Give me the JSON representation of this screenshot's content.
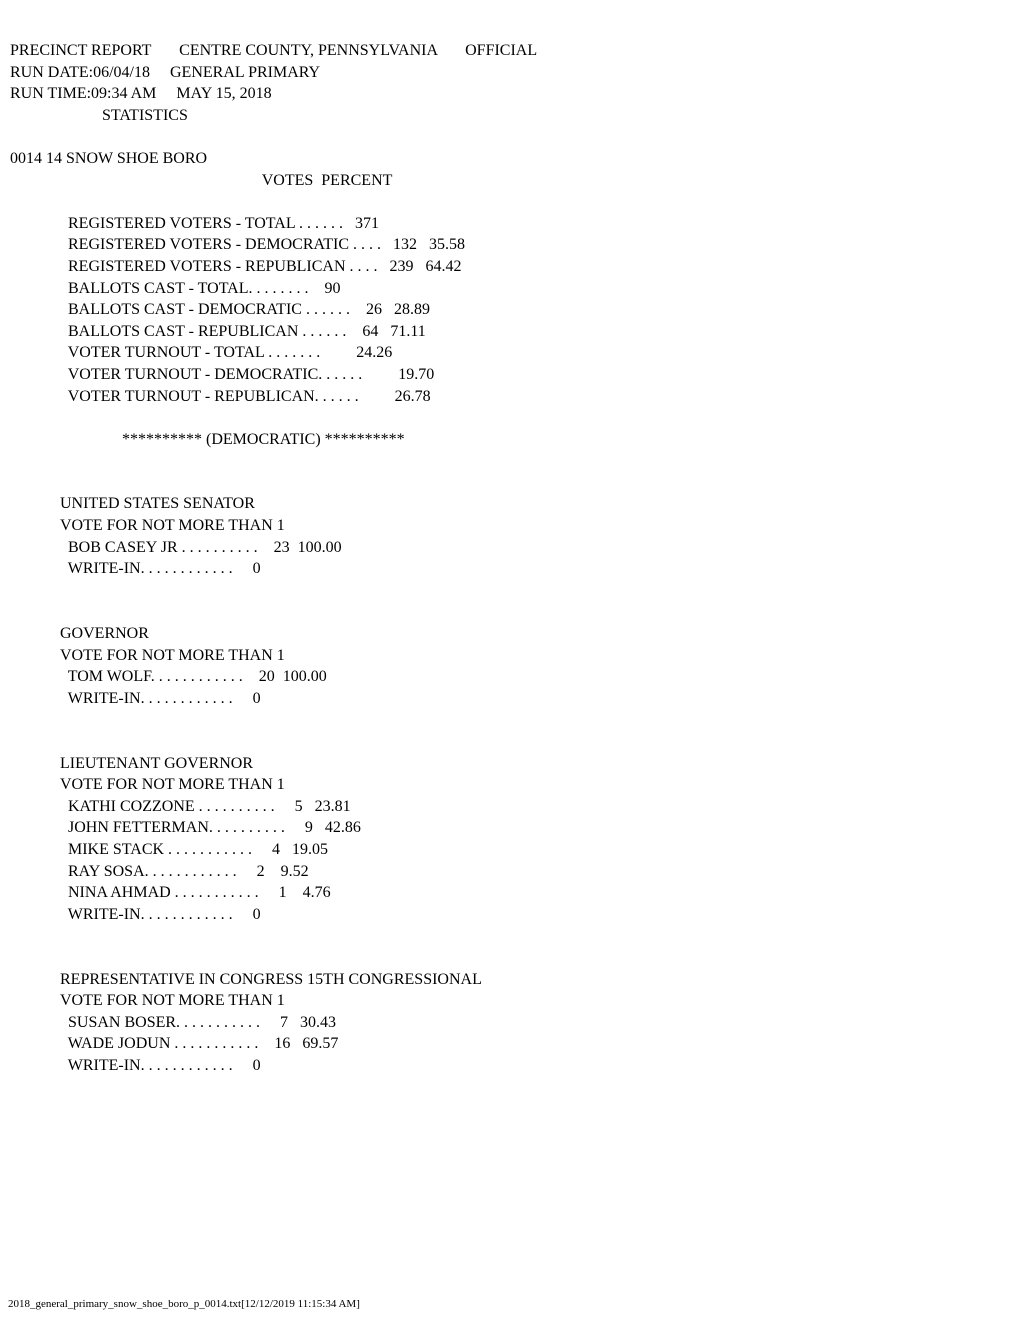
{
  "header": {
    "line1_left": "PRECINCT REPORT",
    "line1_center": "CENTRE COUNTY, PENNSYLVANIA",
    "line1_right": "OFFICIAL",
    "line2_left": "RUN DATE:06/04/18",
    "line2_right": "GENERAL PRIMARY",
    "line3_left": "RUN TIME:09:34 AM",
    "line3_right": "MAY 15, 2018",
    "line4": "STATISTICS"
  },
  "precinct": "0014 14 SNOW SHOE BORO",
  "cols_header": "VOTES  PERCENT",
  "stats": [
    {
      "label": "REGISTERED VOTERS - TOTAL . . . . . .",
      "votes": "371",
      "pct": ""
    },
    {
      "label": "REGISTERED VOTERS - DEMOCRATIC . . . .",
      "votes": "132",
      "pct": "35.58"
    },
    {
      "label": "REGISTERED VOTERS - REPUBLICAN . . . .",
      "votes": "239",
      "pct": "64.42"
    },
    {
      "label": "BALLOTS CAST - TOTAL. . . . . . . .",
      "votes": "90",
      "pct": ""
    },
    {
      "label": "BALLOTS CAST - DEMOCRATIC . . . . . .",
      "votes": "26",
      "pct": "28.89"
    },
    {
      "label": "BALLOTS CAST - REPUBLICAN . . . . . .",
      "votes": "64",
      "pct": "71.11"
    },
    {
      "label": "VOTER TURNOUT - TOTAL . . . . . . .",
      "votes": "",
      "pct": "24.26"
    },
    {
      "label": "VOTER TURNOUT - DEMOCRATIC. . . . . .",
      "votes": "",
      "pct": "19.70"
    },
    {
      "label": "VOTER TURNOUT - REPUBLICAN. . . . . .",
      "votes": "",
      "pct": "26.78"
    }
  ],
  "party_header": "********** (DEMOCRATIC) **********",
  "races": [
    {
      "title": "UNITED STATES SENATOR",
      "subtitle": "VOTE FOR NOT MORE THAN  1",
      "rows": [
        {
          "label": "BOB CASEY JR . . . . . . . . . .",
          "votes": "23",
          "pct": "100.00"
        },
        {
          "label": "WRITE-IN. . . . . . . . . . . .",
          "votes": "0",
          "pct": ""
        }
      ]
    },
    {
      "title": "GOVERNOR",
      "subtitle": "VOTE FOR NOT MORE THAN  1",
      "rows": [
        {
          "label": "TOM WOLF. . . . . . . . . . . .",
          "votes": "20",
          "pct": "100.00"
        },
        {
          "label": "WRITE-IN. . . . . . . . . . . .",
          "votes": "0",
          "pct": ""
        }
      ]
    },
    {
      "title": "LIEUTENANT GOVERNOR",
      "subtitle": "VOTE FOR NOT MORE THAN  1",
      "rows": [
        {
          "label": "KATHI COZZONE . . . . . . . . . .",
          "votes": "5",
          "pct": "23.81"
        },
        {
          "label": "JOHN FETTERMAN. . . . . . . . . .",
          "votes": "9",
          "pct": "42.86"
        },
        {
          "label": "MIKE STACK . . . . . . . . . . .",
          "votes": "4",
          "pct": "19.05"
        },
        {
          "label": "RAY SOSA. . . . . . . . . . . .",
          "votes": "2",
          "pct": "9.52"
        },
        {
          "label": "NINA AHMAD . . . . . . . . . . .",
          "votes": "1",
          "pct": "4.76"
        },
        {
          "label": "WRITE-IN. . . . . . . . . . . .",
          "votes": "0",
          "pct": ""
        }
      ]
    },
    {
      "title": "REPRESENTATIVE IN CONGRESS 15TH CONGRESSIONAL",
      "subtitle": "VOTE FOR NOT MORE THAN  1",
      "rows": [
        {
          "label": "SUSAN BOSER. . . . . . . . . . .",
          "votes": "7",
          "pct": "30.43"
        },
        {
          "label": "WADE JODUN . . . . . . . . . . .",
          "votes": "16",
          "pct": "69.57"
        },
        {
          "label": "WRITE-IN. . . . . . . . . . . .",
          "votes": "0",
          "pct": ""
        }
      ]
    }
  ],
  "footer": "2018_general_primary_snow_shoe_boro_p_0014.txt[12/12/2019 11:15:34 AM]"
}
